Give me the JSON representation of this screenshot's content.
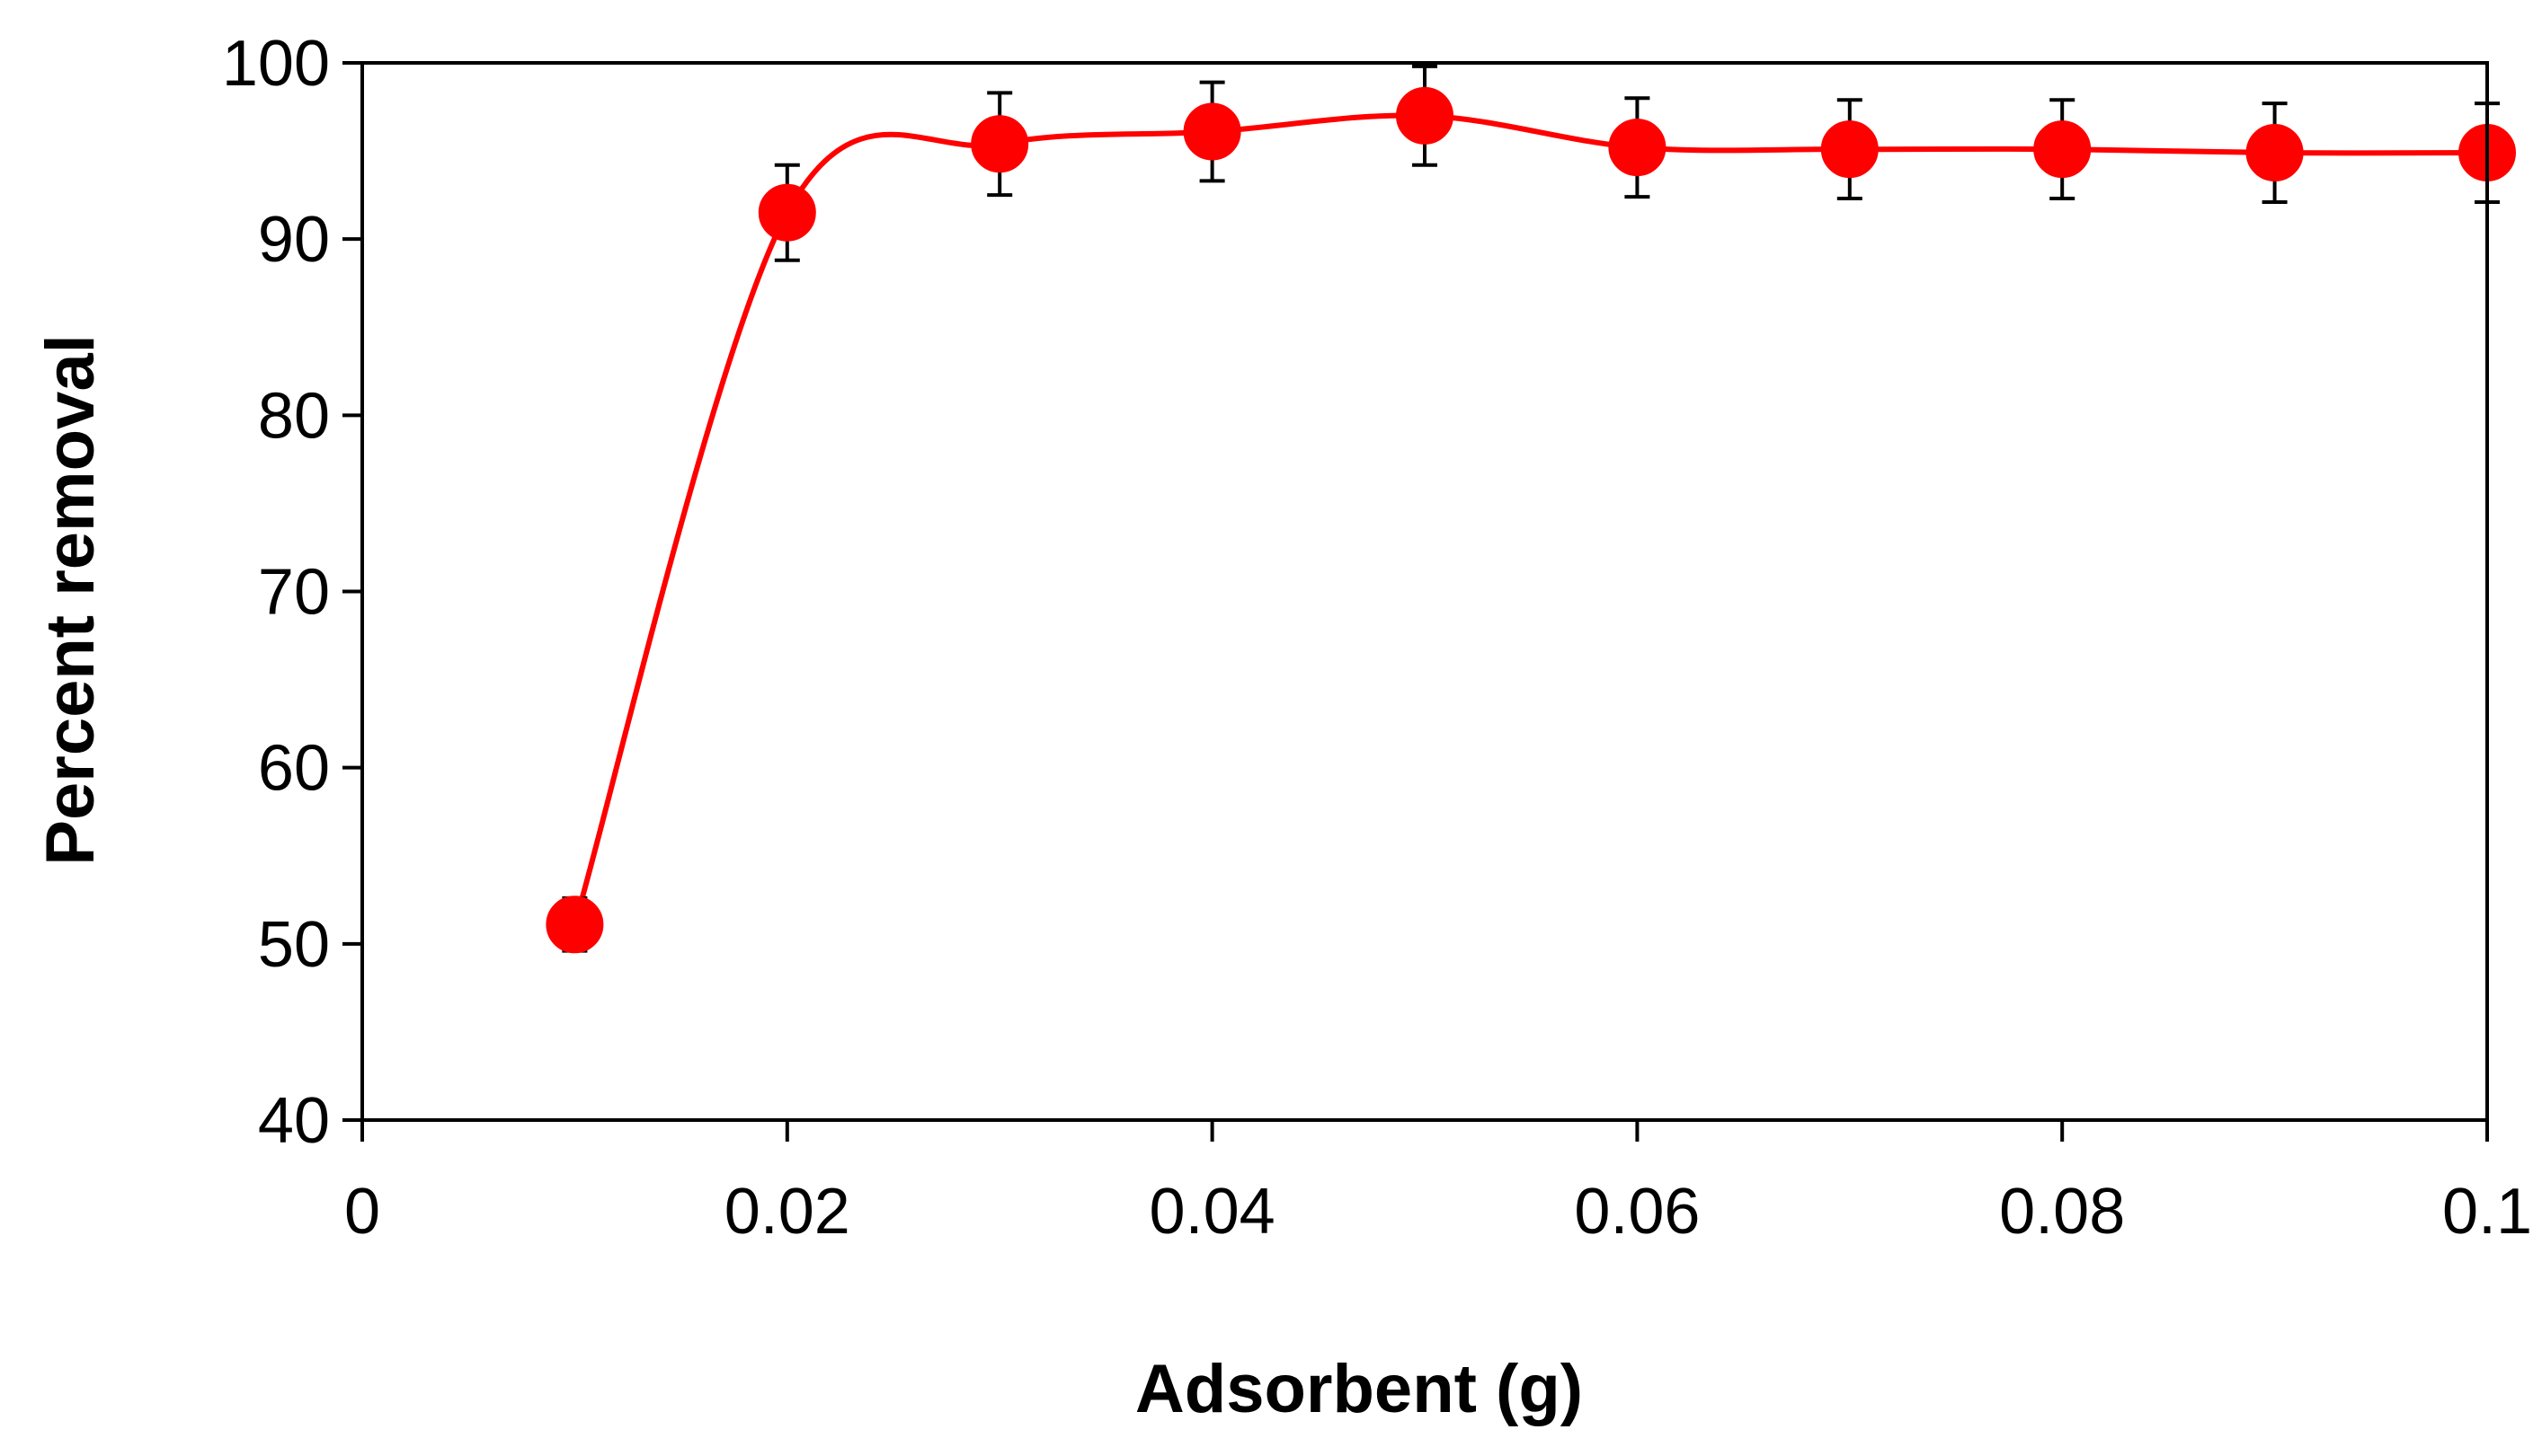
{
  "chart_data": {
    "type": "scatter",
    "title": "",
    "xlabel": "Adsorbent (g)",
    "ylabel": "Percent removal",
    "xlim": [
      0,
      0.1
    ],
    "ylim": [
      40,
      100
    ],
    "x_ticks": [
      0,
      0.02,
      0.04,
      0.06,
      0.08,
      0.1
    ],
    "x_tick_labels": [
      "0",
      "0.02",
      "0.04",
      "0.06",
      "0.08",
      "0.1"
    ],
    "y_ticks": [
      40,
      50,
      60,
      70,
      80,
      90,
      100
    ],
    "y_tick_labels": [
      "40",
      "50",
      "60",
      "70",
      "80",
      "90",
      "100"
    ],
    "grid": false,
    "legend": "none",
    "smooth_line": true,
    "series": [
      {
        "color": "#ff0000",
        "x": [
          0.01,
          0.02,
          0.03,
          0.04,
          0.05,
          0.06,
          0.07,
          0.08,
          0.09,
          0.1
        ],
        "y": [
          51.1,
          91.5,
          95.4,
          96.1,
          97.0,
          95.2,
          95.1,
          95.1,
          94.9,
          94.9
        ],
        "error": [
          1.5,
          2.7,
          2.9,
          2.8,
          2.8,
          2.8,
          2.8,
          2.8,
          2.8,
          2.8
        ]
      }
    ]
  }
}
